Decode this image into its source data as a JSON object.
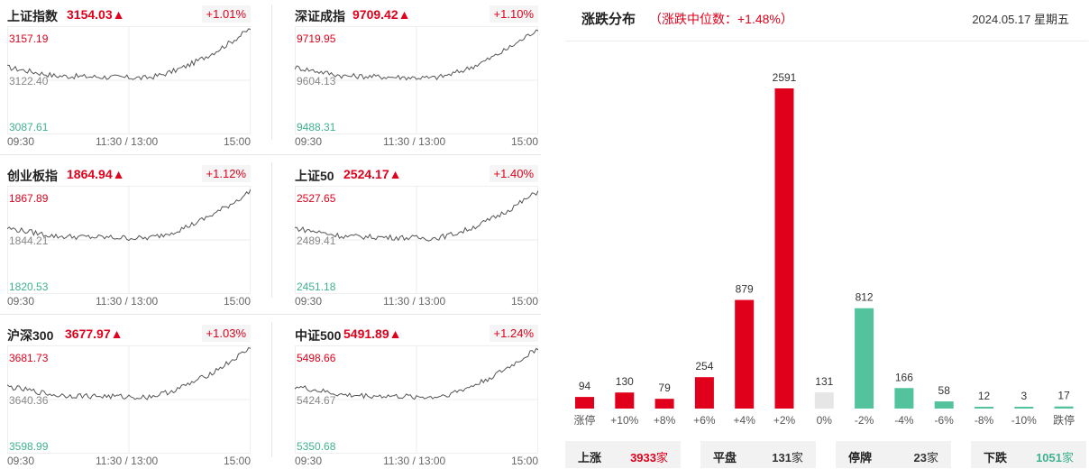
{
  "indices": [
    {
      "name": "上证指数",
      "value": "3154.03▲",
      "change": "+1.01%",
      "high": "3157.19",
      "mid": "3122.40",
      "low": "3087.61",
      "times": [
        "09:30",
        "11:30 / 13:00",
        "15:00"
      ]
    },
    {
      "name": "深证成指",
      "value": "9709.42▲",
      "change": "+1.10%",
      "high": "9719.95",
      "mid": "9604.13",
      "low": "9488.31",
      "times": [
        "09:30",
        "11:30 / 13:00",
        "15:00"
      ]
    },
    {
      "name": "创业板指",
      "value": "1864.94▲",
      "change": "+1.12%",
      "high": "1867.89",
      "mid": "1844.21",
      "low": "1820.53",
      "times": [
        "09:30",
        "11:30 / 13:00",
        "15:00"
      ]
    },
    {
      "name": "上证50",
      "value": "2524.17▲",
      "change": "+1.40%",
      "high": "2527.65",
      "mid": "2489.41",
      "low": "2451.18",
      "times": [
        "09:30",
        "11:30 / 13:00",
        "15:00"
      ]
    },
    {
      "name": "沪深300",
      "value": "3677.97▲",
      "change": "+1.03%",
      "high": "3681.73",
      "mid": "3640.36",
      "low": "3598.99",
      "times": [
        "09:30",
        "11:30 / 13:00",
        "15:00"
      ]
    },
    {
      "name": "中证500",
      "value": "5491.89▲",
      "change": "+1.24%",
      "high": "5498.66",
      "mid": "5424.67",
      "low": "5350.68",
      "times": [
        "09:30",
        "11:30 / 13:00",
        "15:00"
      ]
    }
  ],
  "distribution": {
    "title": "涨跌分布",
    "median": "（涨跌中位数：+1.48%）",
    "date": "2024.05.17 星期五"
  },
  "chart_data": {
    "type": "bar",
    "categories": [
      "涨停",
      "+10%",
      "+8%",
      "+6%",
      "+4%",
      "+2%",
      "0%",
      "-2%",
      "-4%",
      "-6%",
      "-8%",
      "-10%",
      "跌停"
    ],
    "values": [
      94,
      130,
      79,
      254,
      879,
      2591,
      131,
      812,
      166,
      58,
      12,
      3,
      17
    ],
    "value_labels": [
      "94",
      "130",
      "79",
      "254",
      "879",
      "2591",
      "131",
      "812",
      "166",
      "58",
      "12",
      "3",
      "17"
    ],
    "colors": [
      "#e0001b",
      "#e0001b",
      "#e0001b",
      "#e0001b",
      "#e0001b",
      "#e0001b",
      "#e6e6e6",
      "#52c39c",
      "#52c39c",
      "#52c39c",
      "#52c39c",
      "#52c39c",
      "#52c39c"
    ],
    "ylim": [
      0,
      2591
    ]
  },
  "summary": [
    {
      "label": "上涨",
      "value": "3933",
      "unit": "家",
      "color": "#e0001b"
    },
    {
      "label": "平盘",
      "value": "131",
      "unit": "家",
      "color": "#333333"
    },
    {
      "label": "停牌",
      "value": "23",
      "unit": "家",
      "color": "#333333"
    },
    {
      "label": "下跌",
      "value": "1051",
      "unit": "家",
      "color": "#3fb28f"
    }
  ]
}
